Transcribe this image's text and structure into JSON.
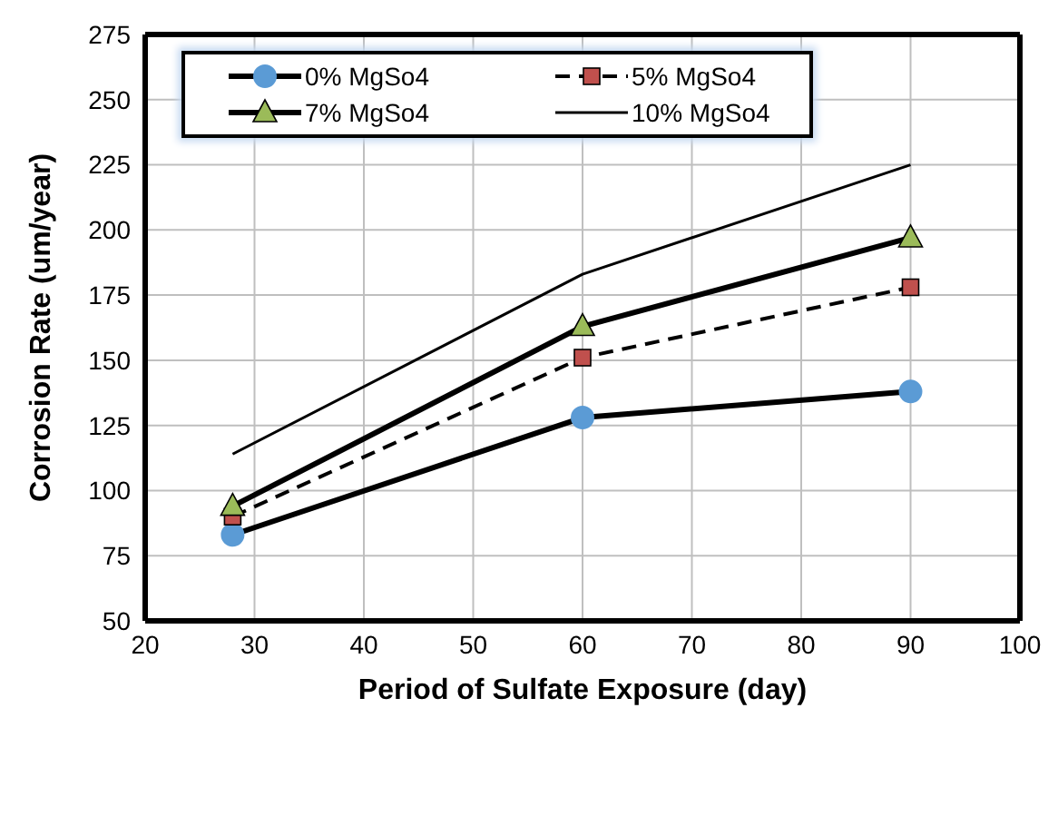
{
  "chart_data": {
    "type": "line",
    "xlabel": "Period of Sulfate Exposure (day)",
    "ylabel": "Corrosion Rate (um/year)",
    "x": [
      28,
      60,
      90
    ],
    "series": [
      {
        "name": "0% MgSo4",
        "color": "#5b9bd5",
        "marker": "circle",
        "line_style": "solid",
        "values": [
          83,
          128,
          138
        ]
      },
      {
        "name": "5% MgSo4",
        "color": "#c0504d",
        "marker": "square",
        "line_style": "dashed",
        "values": [
          90,
          151,
          178
        ]
      },
      {
        "name": "7% MgSo4",
        "color": "#9bbb59",
        "marker": "triangle",
        "line_style": "solid",
        "values": [
          94,
          163,
          197
        ]
      },
      {
        "name": "10% MgSo4",
        "color": "#000000",
        "marker": "none",
        "line_style": "solid",
        "values": [
          114,
          183,
          225
        ]
      }
    ],
    "xlim": [
      20,
      100
    ],
    "xticks": [
      20,
      30,
      40,
      50,
      60,
      70,
      80,
      90,
      100
    ],
    "ylim": [
      50,
      275
    ],
    "yticks": [
      50,
      75,
      100,
      125,
      150,
      175,
      200,
      225,
      250,
      275
    ],
    "grid": true,
    "legend": "top left"
  }
}
